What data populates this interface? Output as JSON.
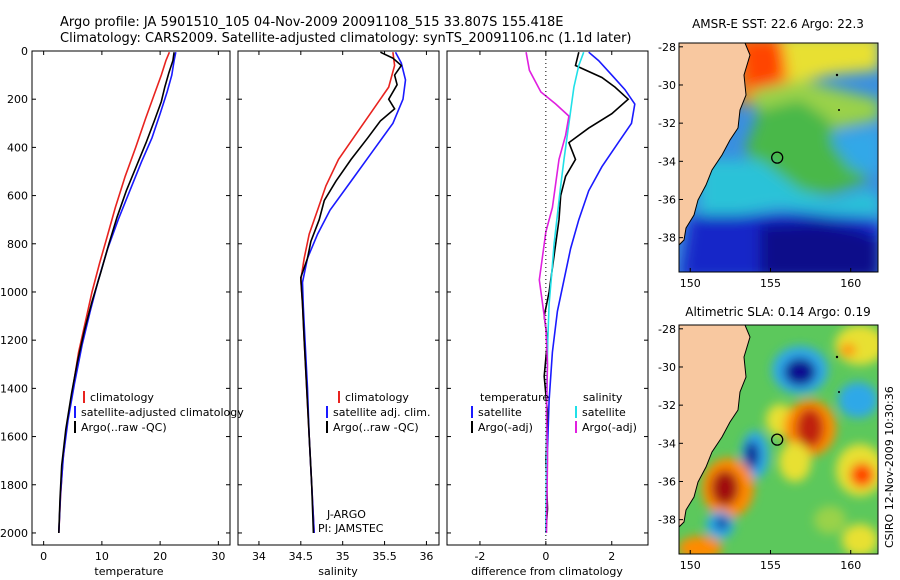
{
  "title_line1": "Argo profile: JA 5901510_105 04-Nov-2009 20091108_515 33.807S 155.418E",
  "title_line2": "Climatology: CARS2009. Satellite-adjusted climatology: synTS_20091106.nc (1.1d later)",
  "side_credit": "CSIRO 12-Nov-2009 10:30:36",
  "colors": {
    "climatology": "#e8231f",
    "satellite": "#1a1aff",
    "argo": "#000000",
    "satellite_diff": "#20e0e8",
    "argo_diff": "#e020e0",
    "land": "#f8c8a0"
  },
  "chart_data": [
    {
      "type": "line",
      "id": "temperature",
      "xlabel": "temperature",
      "ylabel": "",
      "xlim": [
        -2,
        32
      ],
      "ylim": [
        2050,
        0
      ],
      "xticks": [
        "0",
        "10",
        "20",
        "30"
      ],
      "yticks": [
        "0",
        "200",
        "400",
        "600",
        "800",
        "1000",
        "1200",
        "1400",
        "1600",
        "1800",
        "2000"
      ],
      "legend": [
        "climatology",
        "satellite-adjusted climatology",
        "Argo(..raw -QC)"
      ],
      "series": [
        {
          "name": "climatology",
          "color": "climatology",
          "points": [
            [
              21.6,
              5
            ],
            [
              21.0,
              40
            ],
            [
              20.2,
              100
            ],
            [
              19.0,
              180
            ],
            [
              17.5,
              280
            ],
            [
              15.8,
              400
            ],
            [
              14.0,
              520
            ],
            [
              12.3,
              650
            ],
            [
              10.8,
              780
            ],
            [
              9.6,
              880
            ],
            [
              8.3,
              1000
            ],
            [
              7.2,
              1120
            ],
            [
              6.0,
              1250
            ],
            [
              5.0,
              1400
            ],
            [
              4.0,
              1550
            ],
            [
              3.3,
              1700
            ],
            [
              2.9,
              1850
            ],
            [
              2.6,
              2000
            ]
          ]
        },
        {
          "name": "satellite-adjusted climatology",
          "color": "satellite",
          "points": [
            [
              22.7,
              5
            ],
            [
              22.4,
              40
            ],
            [
              22.0,
              100
            ],
            [
              21.2,
              170
            ],
            [
              20.0,
              260
            ],
            [
              18.6,
              360
            ],
            [
              16.8,
              460
            ],
            [
              14.8,
              580
            ],
            [
              12.8,
              700
            ],
            [
              11.0,
              820
            ],
            [
              9.4,
              950
            ],
            [
              8.0,
              1080
            ],
            [
              6.6,
              1220
            ],
            [
              5.3,
              1380
            ],
            [
              4.2,
              1530
            ],
            [
              3.4,
              1680
            ],
            [
              2.9,
              1840
            ],
            [
              2.6,
              2000
            ]
          ]
        },
        {
          "name": "Argo(..raw -QC)",
          "color": "argo",
          "points": [
            [
              22.4,
              5
            ],
            [
              22.2,
              40
            ],
            [
              21.5,
              90
            ],
            [
              20.8,
              150
            ],
            [
              20.2,
              210
            ],
            [
              19.0,
              290
            ],
            [
              17.6,
              380
            ],
            [
              15.9,
              480
            ],
            [
              14.2,
              580
            ],
            [
              12.6,
              690
            ],
            [
              11.2,
              800
            ],
            [
              9.8,
              920
            ],
            [
              8.3,
              1040
            ],
            [
              7.0,
              1160
            ],
            [
              5.8,
              1290
            ],
            [
              4.8,
              1420
            ],
            [
              3.8,
              1570
            ],
            [
              3.1,
              1720
            ],
            [
              2.8,
              1860
            ],
            [
              2.6,
              2000
            ]
          ]
        }
      ]
    },
    {
      "type": "line",
      "id": "salinity",
      "xlabel": "salinity",
      "xlim": [
        33.75,
        36.15
      ],
      "ylim": [
        2050,
        0
      ],
      "xticks": [
        "34",
        "34.5",
        "35",
        "35.5",
        "36"
      ],
      "legend": [
        "climatology",
        "satellite adj. clim.",
        "Argo(..raw -QC)"
      ],
      "annotation": [
        "J-ARGO",
        "PI: JAMSTEC"
      ],
      "series": [
        {
          "name": "climatology",
          "color": "climatology",
          "points": [
            [
              35.6,
              5
            ],
            [
              35.62,
              60
            ],
            [
              35.55,
              150
            ],
            [
              35.35,
              250
            ],
            [
              35.15,
              350
            ],
            [
              34.95,
              450
            ],
            [
              34.8,
              560
            ],
            [
              34.7,
              660
            ],
            [
              34.6,
              760
            ],
            [
              34.54,
              860
            ],
            [
              34.5,
              950
            ],
            [
              34.52,
              1050
            ],
            [
              34.54,
              1200
            ],
            [
              34.57,
              1400
            ],
            [
              34.6,
              1600
            ],
            [
              34.63,
              1800
            ],
            [
              34.66,
              2000
            ]
          ]
        },
        {
          "name": "satellite adj. clim.",
          "color": "satellite",
          "points": [
            [
              35.63,
              5
            ],
            [
              35.7,
              50
            ],
            [
              35.75,
              120
            ],
            [
              35.72,
              200
            ],
            [
              35.6,
              300
            ],
            [
              35.35,
              420
            ],
            [
              35.1,
              540
            ],
            [
              34.85,
              660
            ],
            [
              34.7,
              760
            ],
            [
              34.58,
              860
            ],
            [
              34.52,
              960
            ],
            [
              34.53,
              1060
            ],
            [
              34.55,
              1200
            ],
            [
              34.58,
              1400
            ],
            [
              34.6,
              1600
            ],
            [
              34.63,
              1800
            ],
            [
              34.66,
              2000
            ]
          ]
        },
        {
          "name": "Argo(..raw -QC)",
          "color": "argo",
          "points": [
            [
              35.45,
              5
            ],
            [
              35.6,
              30
            ],
            [
              35.7,
              60
            ],
            [
              35.62,
              100
            ],
            [
              35.65,
              140
            ],
            [
              35.55,
              200
            ],
            [
              35.62,
              240
            ],
            [
              35.45,
              290
            ],
            [
              35.3,
              360
            ],
            [
              35.1,
              450
            ],
            [
              34.92,
              540
            ],
            [
              34.78,
              620
            ],
            [
              34.72,
              700
            ],
            [
              34.62,
              790
            ],
            [
              34.58,
              860
            ],
            [
              34.5,
              940
            ],
            [
              34.52,
              1050
            ],
            [
              34.54,
              1200
            ],
            [
              34.57,
              1400
            ],
            [
              34.6,
              1600
            ],
            [
              34.63,
              1800
            ],
            [
              34.65,
              2000
            ]
          ]
        }
      ]
    },
    {
      "type": "line",
      "id": "difference",
      "xlabel": "difference from climatology",
      "xlim": [
        -3,
        3.1
      ],
      "ylim": [
        2050,
        0
      ],
      "xticks": [
        "-2",
        "0",
        "2"
      ],
      "legend_left_title": "temperature",
      "legend_right_title": "salinity",
      "legend": [
        "satellite",
        "Argo(-adj)",
        "satellite",
        "Argo(-adj)"
      ],
      "series": [
        {
          "name": "temperature satellite",
          "color": "satellite",
          "points": [
            [
              1.3,
              5
            ],
            [
              1.6,
              40
            ],
            [
              2.0,
              100
            ],
            [
              2.4,
              160
            ],
            [
              2.7,
              220
            ],
            [
              2.6,
              300
            ],
            [
              2.2,
              380
            ],
            [
              1.7,
              480
            ],
            [
              1.3,
              580
            ],
            [
              1.0,
              700
            ],
            [
              0.75,
              820
            ],
            [
              0.55,
              950
            ],
            [
              0.35,
              1080
            ],
            [
              0.2,
              1250
            ],
            [
              0.1,
              1450
            ],
            [
              0.05,
              1650
            ],
            [
              0.02,
              1850
            ],
            [
              0.0,
              2000
            ]
          ]
        },
        {
          "name": "temperature Argo(-adj)",
          "color": "argo",
          "points": [
            [
              1.0,
              5
            ],
            [
              0.9,
              60
            ],
            [
              1.7,
              110
            ],
            [
              2.1,
              150
            ],
            [
              2.5,
              200
            ],
            [
              2.0,
              260
            ],
            [
              1.3,
              320
            ],
            [
              0.7,
              380
            ],
            [
              0.9,
              450
            ],
            [
              0.6,
              520
            ],
            [
              0.45,
              600
            ],
            [
              0.4,
              700
            ],
            [
              0.3,
              800
            ],
            [
              0.2,
              900
            ],
            [
              0.1,
              1000
            ],
            [
              -0.05,
              1100
            ],
            [
              0.05,
              1200
            ],
            [
              -0.05,
              1350
            ],
            [
              0.05,
              1500
            ],
            [
              0.0,
              1700
            ],
            [
              0.05,
              1900
            ],
            [
              0.0,
              2000
            ]
          ]
        },
        {
          "name": "salinity satellite",
          "color": "satellite_diff",
          "points": [
            [
              1.15,
              5
            ],
            [
              1.0,
              60
            ],
            [
              0.85,
              150
            ],
            [
              0.75,
              250
            ],
            [
              0.65,
              350
            ],
            [
              0.55,
              450
            ],
            [
              0.45,
              560
            ],
            [
              0.35,
              680
            ],
            [
              0.25,
              800
            ],
            [
              0.18,
              920
            ],
            [
              0.1,
              1050
            ],
            [
              0.06,
              1200
            ],
            [
              0.03,
              1400
            ],
            [
              0.02,
              1600
            ],
            [
              0.01,
              1800
            ],
            [
              0.0,
              2000
            ]
          ]
        },
        {
          "name": "salinity Argo(-adj)",
          "color": "argo_diff",
          "points": [
            [
              -0.6,
              5
            ],
            [
              -0.5,
              80
            ],
            [
              -0.15,
              170
            ],
            [
              0.3,
              220
            ],
            [
              0.7,
              270
            ],
            [
              0.6,
              350
            ],
            [
              0.4,
              450
            ],
            [
              0.3,
              550
            ],
            [
              0.2,
              650
            ],
            [
              0.0,
              750
            ],
            [
              -0.1,
              850
            ],
            [
              -0.2,
              950
            ],
            [
              -0.1,
              1050
            ],
            [
              0.0,
              1150
            ],
            [
              0.05,
              1300
            ],
            [
              0.02,
              1500
            ],
            [
              0.05,
              1700
            ],
            [
              0.03,
              1900
            ],
            [
              0.02,
              2000
            ]
          ]
        }
      ]
    },
    {
      "type": "heatmap",
      "id": "sst-map",
      "title": "AMSR-E SST: 22.6 Argo: 22.3",
      "xlim": [
        149.3,
        161.7
      ],
      "ylim": [
        -39.8,
        -27.8
      ],
      "xticks": [
        "150",
        "155",
        "160"
      ],
      "yticks": [
        "-28",
        "-30",
        "-32",
        "-34",
        "-36",
        "-38"
      ],
      "marker": [
        155.418,
        -33.807
      ]
    },
    {
      "type": "heatmap",
      "id": "sla-map",
      "title": "Altimetric SLA: 0.14 Argo: 0.19",
      "xlim": [
        149.3,
        161.7
      ],
      "ylim": [
        -39.8,
        -27.8
      ],
      "xticks": [
        "150",
        "155",
        "160"
      ],
      "yticks": [
        "-28",
        "-30",
        "-32",
        "-34",
        "-36",
        "-38"
      ],
      "marker": [
        155.418,
        -33.807
      ]
    }
  ]
}
